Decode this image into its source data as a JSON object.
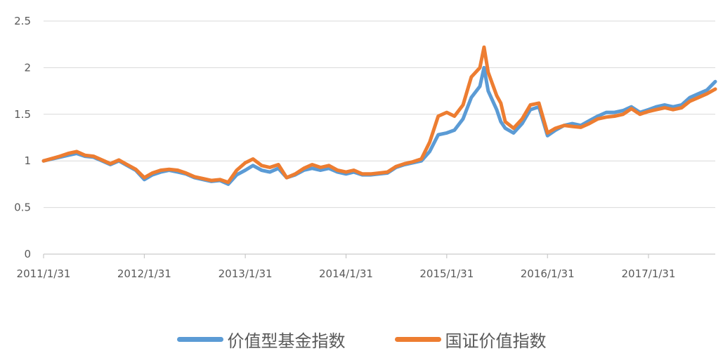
{
  "chart_data": {
    "type": "line",
    "title": "",
    "xlabel": "",
    "ylabel": "",
    "x_ticks": [
      "2011/1/31",
      "2012/1/31",
      "2013/1/31",
      "2014/1/31",
      "2015/1/31",
      "2016/1/31",
      "2017/1/31"
    ],
    "y_ticks": [
      "0",
      "0.5",
      "1",
      "1.5",
      "2",
      "2.5"
    ],
    "ylim": [
      0,
      2.5
    ],
    "xlim": [
      "2011/1/31",
      "2017/9/30"
    ],
    "grid": "horizontal",
    "legend_position": "bottom",
    "series": [
      {
        "name": "价值型基金指数",
        "color": "#5B9BD5",
        "points": [
          [
            "2011/1/31",
            1.0
          ],
          [
            "2011/3/31",
            1.04
          ],
          [
            "2011/4/30",
            1.06
          ],
          [
            "2011/5/31",
            1.08
          ],
          [
            "2011/6/30",
            1.05
          ],
          [
            "2011/7/31",
            1.04
          ],
          [
            "2011/8/31",
            1.0
          ],
          [
            "2011/9/30",
            0.96
          ],
          [
            "2011/10/31",
            1.0
          ],
          [
            "2011/11/30",
            0.95
          ],
          [
            "2011/12/31",
            0.9
          ],
          [
            "2012/1/31",
            0.8
          ],
          [
            "2012/2/29",
            0.85
          ],
          [
            "2012/3/31",
            0.88
          ],
          [
            "2012/4/30",
            0.9
          ],
          [
            "2012/5/31",
            0.88
          ],
          [
            "2012/6/30",
            0.86
          ],
          [
            "2012/7/31",
            0.82
          ],
          [
            "2012/8/31",
            0.8
          ],
          [
            "2012/9/30",
            0.78
          ],
          [
            "2012/10/31",
            0.79
          ],
          [
            "2012/11/30",
            0.75
          ],
          [
            "2012/12/31",
            0.85
          ],
          [
            "2013/1/31",
            0.9
          ],
          [
            "2013/2/28",
            0.95
          ],
          [
            "2013/3/31",
            0.9
          ],
          [
            "2013/4/30",
            0.88
          ],
          [
            "2013/5/31",
            0.92
          ],
          [
            "2013/6/30",
            0.82
          ],
          [
            "2013/7/31",
            0.85
          ],
          [
            "2013/8/31",
            0.9
          ],
          [
            "2013/9/30",
            0.92
          ],
          [
            "2013/10/31",
            0.9
          ],
          [
            "2013/11/30",
            0.92
          ],
          [
            "2013/12/31",
            0.88
          ],
          [
            "2014/1/31",
            0.86
          ],
          [
            "2014/2/28",
            0.88
          ],
          [
            "2014/3/31",
            0.85
          ],
          [
            "2014/4/30",
            0.85
          ],
          [
            "2014/5/31",
            0.86
          ],
          [
            "2014/6/30",
            0.87
          ],
          [
            "2014/7/31",
            0.93
          ],
          [
            "2014/8/31",
            0.96
          ],
          [
            "2014/9/30",
            0.98
          ],
          [
            "2014/10/31",
            1.0
          ],
          [
            "2014/11/30",
            1.1
          ],
          [
            "2014/12/31",
            1.28
          ],
          [
            "2015/1/31",
            1.3
          ],
          [
            "2015/2/28",
            1.33
          ],
          [
            "2015/3/31",
            1.45
          ],
          [
            "2015/4/30",
            1.68
          ],
          [
            "2015/5/31",
            1.8
          ],
          [
            "2015/6/15",
            2.0
          ],
          [
            "2015/6/30",
            1.75
          ],
          [
            "2015/7/31",
            1.55
          ],
          [
            "2015/8/15",
            1.42
          ],
          [
            "2015/8/31",
            1.35
          ],
          [
            "2015/9/30",
            1.3
          ],
          [
            "2015/10/31",
            1.4
          ],
          [
            "2015/11/30",
            1.55
          ],
          [
            "2015/12/31",
            1.58
          ],
          [
            "2016/1/31",
            1.27
          ],
          [
            "2016/2/29",
            1.33
          ],
          [
            "2016/3/31",
            1.38
          ],
          [
            "2016/4/30",
            1.4
          ],
          [
            "2016/5/31",
            1.38
          ],
          [
            "2016/6/30",
            1.43
          ],
          [
            "2016/7/31",
            1.48
          ],
          [
            "2016/8/31",
            1.52
          ],
          [
            "2016/9/30",
            1.52
          ],
          [
            "2016/10/31",
            1.54
          ],
          [
            "2016/11/30",
            1.58
          ],
          [
            "2016/12/31",
            1.52
          ],
          [
            "2017/1/31",
            1.55
          ],
          [
            "2017/2/28",
            1.58
          ],
          [
            "2017/3/31",
            1.6
          ],
          [
            "2017/4/30",
            1.58
          ],
          [
            "2017/5/31",
            1.6
          ],
          [
            "2017/6/30",
            1.68
          ],
          [
            "2017/7/31",
            1.72
          ],
          [
            "2017/8/31",
            1.76
          ],
          [
            "2017/9/30",
            1.85
          ]
        ]
      },
      {
        "name": "国证价值指数",
        "color": "#ED7D31",
        "points": [
          [
            "2011/1/31",
            1.0
          ],
          [
            "2011/3/31",
            1.05
          ],
          [
            "2011/4/30",
            1.08
          ],
          [
            "2011/5/31",
            1.1
          ],
          [
            "2011/6/30",
            1.06
          ],
          [
            "2011/7/31",
            1.05
          ],
          [
            "2011/8/31",
            1.01
          ],
          [
            "2011/9/30",
            0.97
          ],
          [
            "2011/10/31",
            1.01
          ],
          [
            "2011/11/30",
            0.96
          ],
          [
            "2011/12/31",
            0.91
          ],
          [
            "2012/1/31",
            0.82
          ],
          [
            "2012/2/29",
            0.87
          ],
          [
            "2012/3/31",
            0.9
          ],
          [
            "2012/4/30",
            0.91
          ],
          [
            "2012/5/31",
            0.9
          ],
          [
            "2012/6/30",
            0.87
          ],
          [
            "2012/7/31",
            0.83
          ],
          [
            "2012/8/31",
            0.81
          ],
          [
            "2012/9/30",
            0.79
          ],
          [
            "2012/10/31",
            0.8
          ],
          [
            "2012/11/30",
            0.77
          ],
          [
            "2012/12/31",
            0.9
          ],
          [
            "2013/1/31",
            0.98
          ],
          [
            "2013/2/28",
            1.02
          ],
          [
            "2013/3/31",
            0.95
          ],
          [
            "2013/4/30",
            0.93
          ],
          [
            "2013/5/31",
            0.96
          ],
          [
            "2013/6/30",
            0.82
          ],
          [
            "2013/7/31",
            0.86
          ],
          [
            "2013/8/31",
            0.92
          ],
          [
            "2013/9/30",
            0.96
          ],
          [
            "2013/10/31",
            0.93
          ],
          [
            "2013/11/30",
            0.95
          ],
          [
            "2013/12/31",
            0.9
          ],
          [
            "2014/1/31",
            0.88
          ],
          [
            "2014/2/28",
            0.9
          ],
          [
            "2014/3/31",
            0.86
          ],
          [
            "2014/4/30",
            0.86
          ],
          [
            "2014/5/31",
            0.87
          ],
          [
            "2014/6/30",
            0.88
          ],
          [
            "2014/7/31",
            0.94
          ],
          [
            "2014/8/31",
            0.97
          ],
          [
            "2014/9/30",
            0.99
          ],
          [
            "2014/10/31",
            1.02
          ],
          [
            "2014/11/30",
            1.2
          ],
          [
            "2014/12/31",
            1.48
          ],
          [
            "2015/1/31",
            1.52
          ],
          [
            "2015/2/28",
            1.48
          ],
          [
            "2015/3/31",
            1.6
          ],
          [
            "2015/4/30",
            1.9
          ],
          [
            "2015/5/31",
            2.0
          ],
          [
            "2015/6/15",
            2.22
          ],
          [
            "2015/6/30",
            1.95
          ],
          [
            "2015/7/31",
            1.7
          ],
          [
            "2015/8/15",
            1.62
          ],
          [
            "2015/8/31",
            1.42
          ],
          [
            "2015/9/30",
            1.35
          ],
          [
            "2015/10/31",
            1.45
          ],
          [
            "2015/11/30",
            1.6
          ],
          [
            "2015/12/31",
            1.62
          ],
          [
            "2016/1/31",
            1.3
          ],
          [
            "2016/2/29",
            1.35
          ],
          [
            "2016/3/31",
            1.38
          ],
          [
            "2016/4/30",
            1.37
          ],
          [
            "2016/5/31",
            1.36
          ],
          [
            "2016/6/30",
            1.4
          ],
          [
            "2016/7/31",
            1.45
          ],
          [
            "2016/8/31",
            1.47
          ],
          [
            "2016/9/30",
            1.48
          ],
          [
            "2016/10/31",
            1.5
          ],
          [
            "2016/11/30",
            1.56
          ],
          [
            "2016/12/31",
            1.5
          ],
          [
            "2017/1/31",
            1.53
          ],
          [
            "2017/2/28",
            1.55
          ],
          [
            "2017/3/31",
            1.57
          ],
          [
            "2017/4/30",
            1.55
          ],
          [
            "2017/5/31",
            1.57
          ],
          [
            "2017/6/30",
            1.64
          ],
          [
            "2017/7/31",
            1.68
          ],
          [
            "2017/8/31",
            1.72
          ],
          [
            "2017/9/30",
            1.77
          ]
        ]
      }
    ]
  }
}
